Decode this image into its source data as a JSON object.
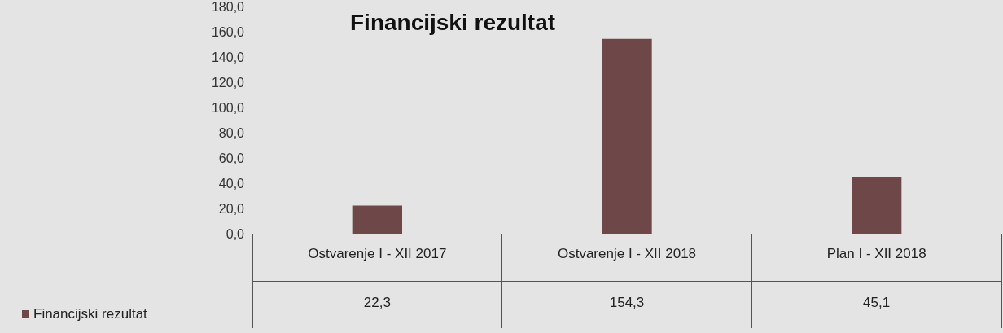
{
  "chart_data": {
    "type": "bar",
    "title": "Financijski rezultat",
    "categories": [
      "Ostvarenje I - XII 2017",
      "Ostvarenje I - XII 2018",
      "Plan I - XII 2018"
    ],
    "series": [
      {
        "name": "Financijski rezultat",
        "color": "#6e4848",
        "values": [
          22.3,
          154.3,
          45.1
        ],
        "value_labels": [
          "22,3",
          "154,3",
          "45,1"
        ]
      }
    ],
    "ylim": [
      0,
      180
    ],
    "yticks": [
      {
        "value": 0,
        "label": "0,0"
      },
      {
        "value": 20,
        "label": "20,0"
      },
      {
        "value": 40,
        "label": "40,0"
      },
      {
        "value": 60,
        "label": "60,0"
      },
      {
        "value": 80,
        "label": "80,0"
      },
      {
        "value": 100,
        "label": "100,0"
      },
      {
        "value": 120,
        "label": "120,0"
      },
      {
        "value": 140,
        "label": "140,0"
      },
      {
        "value": 160,
        "label": "160,0"
      },
      {
        "value": 180,
        "label": "180,0"
      }
    ],
    "grid": false,
    "legend": "bottom left"
  }
}
